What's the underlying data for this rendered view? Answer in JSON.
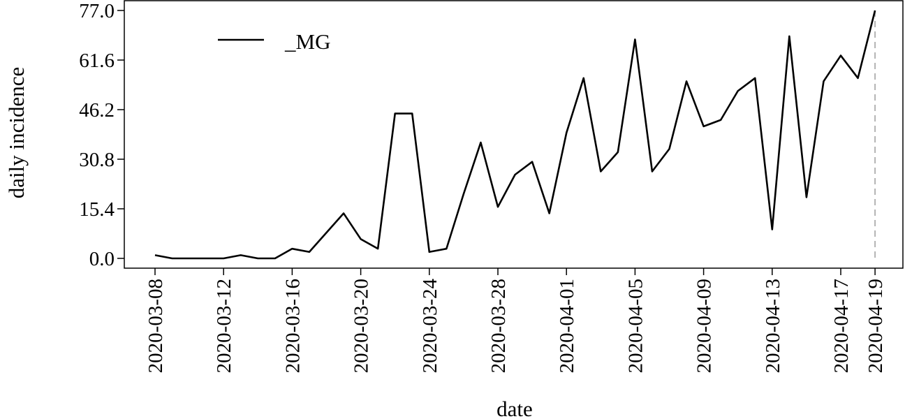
{
  "chart_data": {
    "type": "line",
    "xlabel": "date",
    "ylabel": "daily incidence",
    "ylim": [
      0,
      77
    ],
    "yticks": [
      "0.0",
      "15.4",
      "30.8",
      "46.2",
      "61.6",
      "77.0"
    ],
    "xticks": [
      "2020-03-08",
      "2020-03-12",
      "2020-03-16",
      "2020-03-20",
      "2020-03-24",
      "2020-03-28",
      "2020-04-01",
      "2020-04-05",
      "2020-04-09",
      "2020-04-13",
      "2020-04-17",
      "2020-04-19"
    ],
    "grid": false,
    "legend": {
      "position": "top-left",
      "entries": [
        "_MG"
      ]
    },
    "series": [
      {
        "name": "_MG",
        "color": "#000000",
        "x": [
          "2020-03-08",
          "2020-03-09",
          "2020-03-10",
          "2020-03-11",
          "2020-03-12",
          "2020-03-13",
          "2020-03-14",
          "2020-03-15",
          "2020-03-16",
          "2020-03-17",
          "2020-03-18",
          "2020-03-19",
          "2020-03-20",
          "2020-03-21",
          "2020-03-22",
          "2020-03-23",
          "2020-03-24",
          "2020-03-25",
          "2020-03-26",
          "2020-03-27",
          "2020-03-28",
          "2020-03-29",
          "2020-03-30",
          "2020-03-31",
          "2020-04-01",
          "2020-04-02",
          "2020-04-03",
          "2020-04-04",
          "2020-04-05",
          "2020-04-06",
          "2020-04-07",
          "2020-04-08",
          "2020-04-09",
          "2020-04-10",
          "2020-04-11",
          "2020-04-12",
          "2020-04-13",
          "2020-04-14",
          "2020-04-15",
          "2020-04-16",
          "2020-04-17",
          "2020-04-18",
          "2020-04-19"
        ],
        "values": [
          1,
          0,
          0,
          0,
          0,
          1,
          0,
          0,
          3,
          2,
          8,
          14,
          6,
          3,
          45,
          45,
          2,
          3,
          20,
          36,
          16,
          26,
          30,
          14,
          39,
          56,
          27,
          33,
          68,
          27,
          34,
          55,
          41,
          43,
          52,
          56,
          9,
          69,
          19,
          55,
          63,
          56,
          77
        ]
      }
    ],
    "annotations": [
      {
        "type": "vertical-line",
        "x": "2020-04-19",
        "style": "dashed",
        "color": "#b3b3b3"
      }
    ]
  }
}
